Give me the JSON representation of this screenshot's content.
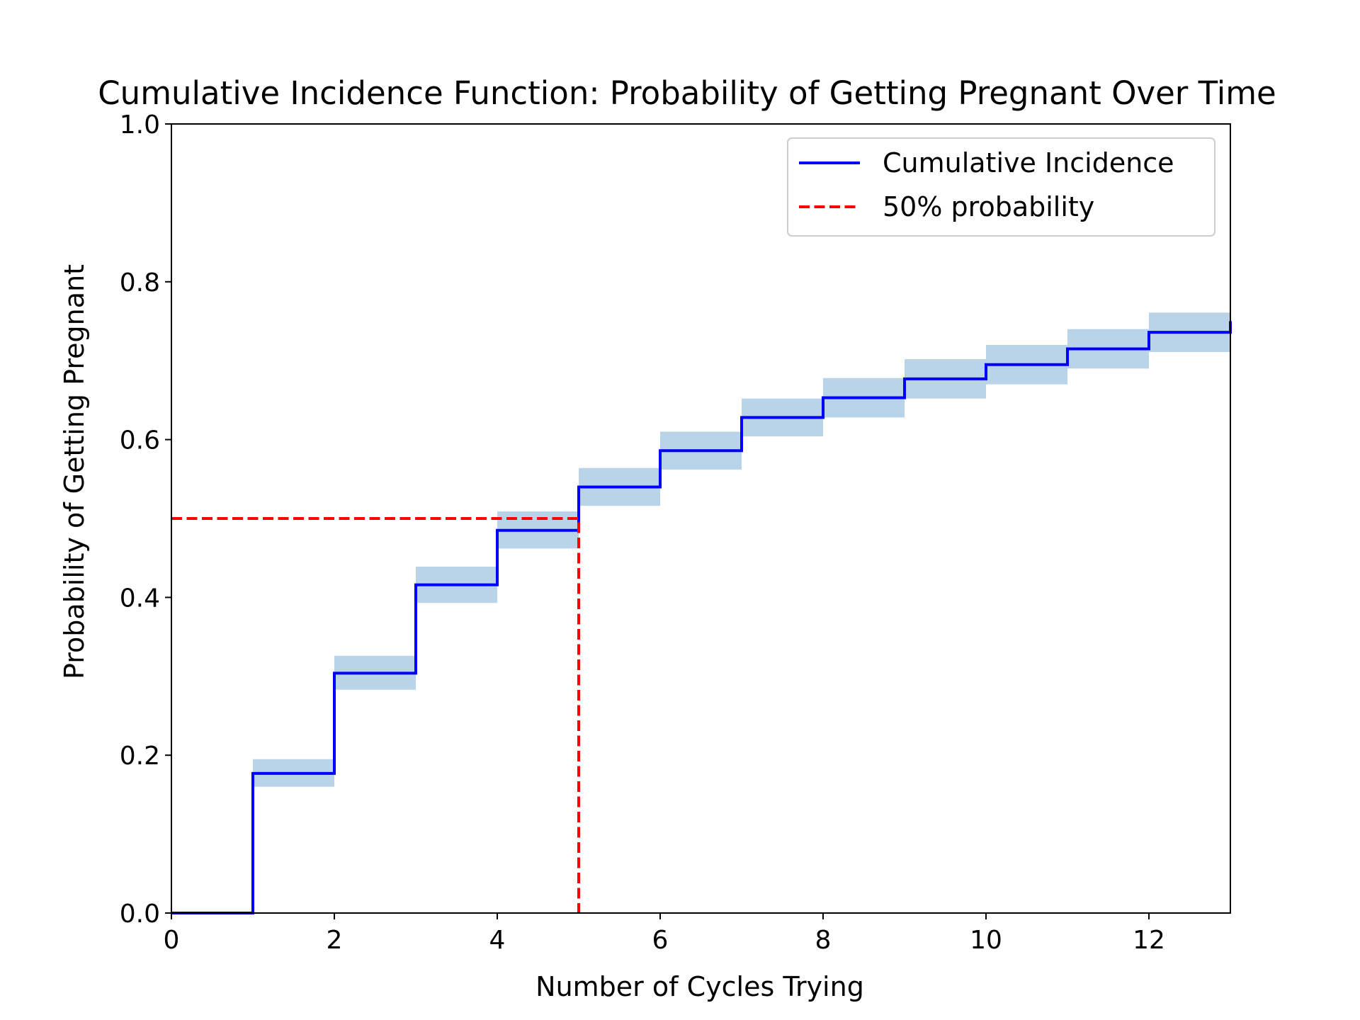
{
  "chart_data": {
    "type": "line",
    "title": "Cumulative Incidence Function: Probability of Getting Pregnant Over Time",
    "xlabel": "Number of Cycles Trying",
    "ylabel": "Probability of Getting Pregnant",
    "xlim": [
      0,
      13
    ],
    "ylim": [
      0,
      1.0
    ],
    "x_ticks": [
      0,
      2,
      4,
      6,
      8,
      10,
      12
    ],
    "x_tick_labels": [
      "0",
      "2",
      "4",
      "6",
      "8",
      "10",
      "12"
    ],
    "y_ticks": [
      0.0,
      0.2,
      0.4,
      0.6,
      0.8,
      1.0
    ],
    "y_tick_labels": [
      "0.0",
      "0.2",
      "0.4",
      "0.6",
      "0.8",
      "1.0"
    ],
    "grid": false,
    "legend_position": "top-right",
    "series": [
      {
        "name": "Cumulative Incidence",
        "style": "step-post",
        "color": "#0000ff",
        "x": [
          0,
          1,
          2,
          3,
          4,
          5,
          6,
          7,
          8,
          9,
          10,
          11,
          12,
          13
        ],
        "y": [
          0.0,
          0.177,
          0.304,
          0.416,
          0.485,
          0.54,
          0.586,
          0.628,
          0.653,
          0.677,
          0.695,
          0.715,
          0.736,
          0.75
        ]
      },
      {
        "name": "50% probability",
        "style": "dashed",
        "color": "#ff0000",
        "x": [
          0,
          5,
          5
        ],
        "y": [
          0.5,
          0.5,
          0.0
        ]
      }
    ],
    "confidence_band": {
      "color": "#b9d3e8",
      "x": [
        0,
        1,
        2,
        3,
        4,
        5,
        6,
        7,
        8,
        9,
        10,
        11,
        12,
        13
      ],
      "lower": [
        0.0,
        0.16,
        0.283,
        0.393,
        0.462,
        0.516,
        0.562,
        0.604,
        0.628,
        0.652,
        0.67,
        0.69,
        0.711,
        0.711
      ],
      "upper": [
        0.0,
        0.195,
        0.326,
        0.439,
        0.509,
        0.564,
        0.61,
        0.652,
        0.678,
        0.702,
        0.72,
        0.74,
        0.761,
        0.761
      ]
    }
  }
}
